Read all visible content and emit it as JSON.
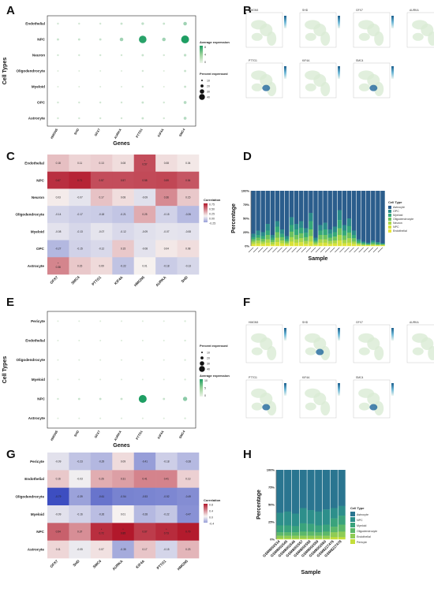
{
  "panels": {
    "A": "A",
    "B": "B",
    "C": "C",
    "D": "D",
    "E": "E",
    "F": "F",
    "G": "G",
    "H": "H"
  },
  "genes": [
    "HMGN5",
    "SHD",
    "GFX7",
    "AURKA",
    "PTTG1",
    "KIF4A",
    "SMC4"
  ],
  "panel_a": {
    "ylabel": "Cell Types",
    "xlabel": "Genes",
    "cell_types": [
      "Endothelial",
      "NPC",
      "Neuron",
      "Oligodendrocyte",
      "Myeloid",
      "OPC",
      "Astrocyte"
    ],
    "legend_expr_title": "Average expression",
    "legend_expr_ticks": [
      "8",
      "4",
      "0"
    ],
    "legend_pct_title": "Percent expressed",
    "legend_pct_ticks": [
      "10",
      "20",
      "30",
      "40"
    ],
    "dots": [
      [
        0.1,
        0.1,
        0.1,
        0.15,
        0.2,
        0.15,
        0.35
      ],
      [
        0.15,
        0.15,
        0.15,
        0.35,
        0.95,
        0.35,
        1.0
      ],
      [
        0.1,
        0.1,
        0.1,
        0.1,
        0.15,
        0.1,
        0.2
      ],
      [
        0.05,
        0.05,
        0.05,
        0.05,
        0.1,
        0.05,
        0.15
      ],
      [
        0.05,
        0.05,
        0.05,
        0.05,
        0.1,
        0.05,
        0.15
      ],
      [
        0.1,
        0.1,
        0.1,
        0.1,
        0.15,
        0.1,
        0.25
      ],
      [
        0.1,
        0.1,
        0.1,
        0.1,
        0.15,
        0.1,
        0.25
      ]
    ]
  },
  "panel_b": {
    "titles": [
      "HMGN5",
      "SHD",
      "GFX7",
      "AURKA",
      "PTTG1",
      "KIF4A",
      "SMC4"
    ]
  },
  "panel_c": {
    "rows": [
      "Endothelial",
      "NPC",
      "Neuron",
      "Oligodendrocyte",
      "Myeloid",
      "OPC",
      "Astrocyte"
    ],
    "cols": [
      "GFX7",
      "SMC4",
      "PTTG1",
      "KIF4A",
      "HMGN5",
      "AURKA",
      "SHD"
    ],
    "legend_title": "Correlation",
    "legend_ticks": [
      "0.75",
      "0.50",
      "0.25",
      "0.00",
      "-0.25"
    ],
    "values": [
      [
        0.18,
        0.11,
        0.13,
        0.08,
        0.57,
        0.08,
        0.04
      ],
      [
        0.67,
        0.71,
        0.57,
        0.57,
        0.58,
        0.59,
        0.54
      ],
      [
        0.03,
        -0.07,
        0.17,
        0.08,
        -0.09,
        0.36,
        0.15
      ],
      [
        -0.14,
        -0.17,
        -0.18,
        -0.21,
        0.25,
        -0.15,
        -0.26
      ],
      [
        -0.08,
        -0.13,
        -0.07,
        -0.12,
        -0.09,
        -0.07,
        -0.08
      ],
      [
        -0.27,
        -0.15,
        -0.12,
        0.15,
        -0.08,
        0.04,
        0.08
      ],
      [
        0.38,
        0.15,
        0.09,
        -0.22,
        0.01,
        -0.18,
        -0.13
      ]
    ],
    "labels": [
      [
        "0.18",
        "0.11",
        "0.13",
        "0.08",
        "* 0.57",
        "0.08",
        "0.04"
      ],
      [
        "0.67",
        "0.71",
        "0.57",
        "0.57",
        "0.58",
        "0.59",
        "0.54"
      ],
      [
        "0.03",
        "-0.07",
        "0.17",
        "0.08",
        "-0.09",
        "0.36",
        "0.15"
      ],
      [
        "-0.14",
        "-0.17",
        "-0.18",
        "-0.21",
        "0.25",
        "-0.15",
        "-0.26"
      ],
      [
        "-0.08",
        "-0.13",
        "-0.07",
        "-0.12",
        "-0.09",
        "-0.07",
        "-0.08"
      ],
      [
        "-0.27",
        "-0.15",
        "-0.12",
        "0.15",
        "-0.08",
        "0.04",
        "0.08"
      ],
      [
        "* 0.38",
        "0.15",
        "0.09",
        "-0.22",
        "0.01",
        "-0.18",
        "-0.13"
      ]
    ]
  },
  "panel_d": {
    "ylabel": "Percentage",
    "xlabel": "Sample",
    "yticks": [
      "100%",
      "75%",
      "50%",
      "25%",
      "0%"
    ],
    "legend_title": "Cell Type",
    "legend_items": [
      "Astrocyte",
      "OPC",
      "Myeloid",
      "Oligodendrocyte",
      "Neuron",
      "NPC",
      "Endothelial"
    ],
    "colors": [
      "#2b5d8c",
      "#2a8a8a",
      "#35a879",
      "#6cc25e",
      "#a8d64a",
      "#d8e23a",
      "#e9e63a"
    ],
    "bars": [
      [
        0.78,
        0.06,
        0.04,
        0.04,
        0.04,
        0.03,
        0.01
      ],
      [
        0.72,
        0.08,
        0.05,
        0.05,
        0.05,
        0.04,
        0.01
      ],
      [
        0.75,
        0.07,
        0.05,
        0.05,
        0.04,
        0.03,
        0.01
      ],
      [
        0.6,
        0.12,
        0.08,
        0.08,
        0.06,
        0.05,
        0.01
      ],
      [
        0.8,
        0.05,
        0.04,
        0.04,
        0.04,
        0.02,
        0.01
      ],
      [
        0.55,
        0.1,
        0.1,
        0.1,
        0.08,
        0.06,
        0.01
      ],
      [
        0.7,
        0.08,
        0.06,
        0.06,
        0.05,
        0.04,
        0.01
      ],
      [
        0.82,
        0.05,
        0.04,
        0.03,
        0.03,
        0.02,
        0.01
      ],
      [
        0.48,
        0.14,
        0.12,
        0.1,
        0.08,
        0.07,
        0.01
      ],
      [
        0.6,
        0.1,
        0.1,
        0.08,
        0.06,
        0.05,
        0.01
      ],
      [
        0.55,
        0.12,
        0.1,
        0.09,
        0.07,
        0.06,
        0.01
      ],
      [
        0.68,
        0.08,
        0.08,
        0.07,
        0.05,
        0.03,
        0.01
      ],
      [
        0.4,
        0.15,
        0.15,
        0.12,
        0.1,
        0.07,
        0.01
      ],
      [
        0.85,
        0.04,
        0.03,
        0.03,
        0.03,
        0.01,
        0.01
      ],
      [
        0.62,
        0.1,
        0.08,
        0.08,
        0.06,
        0.05,
        0.01
      ],
      [
        0.58,
        0.12,
        0.1,
        0.08,
        0.06,
        0.05,
        0.01
      ],
      [
        0.7,
        0.08,
        0.07,
        0.06,
        0.05,
        0.03,
        0.01
      ],
      [
        0.65,
        0.1,
        0.08,
        0.07,
        0.05,
        0.04,
        0.01
      ],
      [
        0.35,
        0.18,
        0.15,
        0.12,
        0.1,
        0.09,
        0.01
      ],
      [
        0.62,
        0.1,
        0.09,
        0.08,
        0.06,
        0.04,
        0.01
      ],
      [
        0.5,
        0.14,
        0.12,
        0.1,
        0.08,
        0.05,
        0.01
      ],
      [
        0.72,
        0.08,
        0.06,
        0.06,
        0.04,
        0.03,
        0.01
      ],
      [
        0.88,
        0.03,
        0.03,
        0.02,
        0.02,
        0.01,
        0.01
      ],
      [
        0.92,
        0.02,
        0.02,
        0.02,
        0.01,
        0.0,
        0.01
      ],
      [
        0.94,
        0.02,
        0.01,
        0.01,
        0.01,
        0.0,
        0.01
      ],
      [
        0.9,
        0.03,
        0.02,
        0.02,
        0.02,
        0.0,
        0.01
      ],
      [
        0.93,
        0.02,
        0.02,
        0.01,
        0.01,
        0.0,
        0.01
      ],
      [
        0.95,
        0.01,
        0.01,
        0.01,
        0.01,
        0.0,
        0.01
      ]
    ]
  },
  "panel_e": {
    "ylabel": "Cell Types",
    "xlabel": "Genes",
    "cell_types": [
      "Pericyte",
      "Endothelial",
      "Oligodendrocyte",
      "Myeloid",
      "NPC",
      "Astrocyte"
    ],
    "legend_pct_title": "Percent expressed",
    "legend_pct_ticks": [
      "10",
      "20",
      "30",
      "40"
    ],
    "legend_expr_title": "Average expression",
    "legend_expr_ticks": [
      "10",
      "5",
      "0"
    ],
    "dots": [
      [
        0.05,
        0.05,
        0.05,
        0.05,
        0.05,
        0.05,
        0.08
      ],
      [
        0.05,
        0.05,
        0.05,
        0.05,
        0.05,
        0.05,
        0.08
      ],
      [
        0.05,
        0.05,
        0.05,
        0.05,
        0.05,
        0.05,
        0.08
      ],
      [
        0.05,
        0.05,
        0.05,
        0.05,
        0.05,
        0.05,
        0.08
      ],
      [
        0.1,
        0.15,
        0.15,
        0.15,
        1.0,
        0.15,
        0.45
      ],
      [
        0.05,
        0.05,
        0.05,
        0.05,
        0.05,
        0.05,
        0.08
      ]
    ]
  },
  "panel_f": {
    "titles": [
      "HMGN5",
      "SHD",
      "GFX7",
      "AURKA",
      "PTTG1",
      "KIF4A",
      "SMC4"
    ]
  },
  "panel_g": {
    "rows": [
      "Pericyte",
      "Endothelial",
      "Oligodendrocyte",
      "Myeloid",
      "NPC",
      "Astrocyte"
    ],
    "cols": [
      "GFX7",
      "SHD",
      "SMC4",
      "AURKA",
      "KIF4A",
      "PTTG1",
      "HMGN5"
    ],
    "legend_title": "Correlation",
    "legend_ticks": [
      "0.8",
      "0.4",
      "0.0",
      "-0.4"
    ],
    "values": [
      [
        -0.09,
        -0.23,
        -0.29,
        0.09,
        -0.41,
        -0.18,
        -0.28
      ],
      [
        0.16,
        -0.03,
        0.26,
        0.31,
        0.41,
        0.41,
        0.13
      ],
      [
        -0.79,
        -0.39,
        -0.61,
        -0.54,
        -0.53,
        -0.52,
        -0.49
      ],
      [
        -0.09,
        -0.16,
        -0.26,
        0.01,
        -0.28,
        -0.22,
        -0.47
      ],
      [
        0.54,
        0.37,
        0.72,
        0.85,
        0.67,
        0.73,
        0.79
      ],
      [
        0.11,
        -0.05,
        0.07,
        -0.35,
        0.17,
        -0.15,
        0.23
      ]
    ],
    "labels": [
      [
        "-0.09",
        "-0.23",
        "-0.29",
        "0.09",
        "-0.41",
        "-0.18",
        "-0.28"
      ],
      [
        "0.16",
        "-0.03",
        "0.26",
        "0.31",
        "0.41",
        "0.41",
        "0.13"
      ],
      [
        "-0.79",
        "-0.39",
        "-0.61",
        "-0.54",
        "-0.53",
        "-0.52",
        "-0.49"
      ],
      [
        "-0.09",
        "-0.16",
        "-0.26",
        "0.01",
        "-0.28",
        "-0.22",
        "-0.47"
      ],
      [
        "0.54",
        "0.37",
        "* 0.72",
        "* 0.85",
        "0.67",
        "* 0.73",
        "0.79"
      ],
      [
        "0.11",
        "-0.05",
        "0.07",
        "-0.35",
        "0.17",
        "-0.15",
        "0.23"
      ]
    ]
  },
  "panel_h": {
    "ylabel": "Percentage",
    "xlabel": "Sample",
    "yticks": [
      "100%",
      "75%",
      "50%",
      "25%",
      "0%"
    ],
    "legend_title": "Cell Type",
    "legend_items": [
      "Astrocyte",
      "NPC",
      "Myeloid",
      "Oligodendrocyte",
      "Endothelial",
      "Pericyte"
    ],
    "colors": [
      "#2a7590",
      "#2d8f8b",
      "#3aa37c",
      "#5cb86a",
      "#8fcc55",
      "#c4de3a"
    ],
    "samples": [
      "GSM8002534",
      "GSM8002545",
      "GSM8002546",
      "GSM8002557",
      "GSM8002558",
      "GSM8002559",
      "GSM8002560",
      "GSM8227476",
      "GSM8227478"
    ],
    "bars": [
      [
        0.62,
        0.18,
        0.1,
        0.05,
        0.04,
        0.01
      ],
      [
        0.6,
        0.2,
        0.1,
        0.05,
        0.04,
        0.01
      ],
      [
        0.63,
        0.18,
        0.09,
        0.05,
        0.04,
        0.01
      ],
      [
        0.55,
        0.22,
        0.12,
        0.06,
        0.04,
        0.01
      ],
      [
        0.58,
        0.2,
        0.11,
        0.06,
        0.04,
        0.01
      ],
      [
        0.6,
        0.2,
        0.1,
        0.05,
        0.04,
        0.01
      ],
      [
        0.57,
        0.22,
        0.1,
        0.06,
        0.04,
        0.01
      ],
      [
        0.55,
        0.15,
        0.12,
        0.08,
        0.07,
        0.03
      ],
      [
        0.52,
        0.14,
        0.13,
        0.1,
        0.08,
        0.03
      ]
    ]
  }
}
